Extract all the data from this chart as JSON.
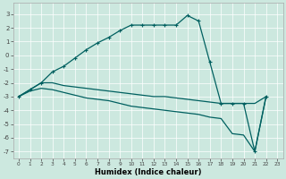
{
  "xlabel": "Humidex (Indice chaleur)",
  "bg_color": "#cce8df",
  "grid_color": "#ffffff",
  "line_color": "#006060",
  "xlim": [
    -0.5,
    23.5
  ],
  "ylim": [
    -7.5,
    3.8
  ],
  "yticks": [
    -7,
    -6,
    -5,
    -4,
    -3,
    -2,
    -1,
    0,
    1,
    2,
    3
  ],
  "xticks": [
    0,
    1,
    2,
    3,
    4,
    5,
    6,
    7,
    8,
    9,
    10,
    11,
    12,
    13,
    14,
    15,
    16,
    17,
    18,
    19,
    20,
    21,
    22,
    23
  ],
  "curve1_x": [
    0,
    1,
    2,
    3,
    4,
    5,
    6,
    7,
    8,
    9,
    10,
    11,
    12,
    13,
    14,
    15,
    16,
    17,
    18,
    19,
    20,
    21,
    22
  ],
  "curve1_y": [
    -3.0,
    -2.5,
    -2.0,
    -1.2,
    -0.8,
    -0.2,
    0.4,
    0.9,
    1.3,
    1.8,
    2.2,
    2.2,
    2.2,
    2.2,
    2.2,
    2.9,
    2.5,
    -0.5,
    -3.5,
    -3.5,
    -3.5,
    -7.0,
    -3.0
  ],
  "curve2_x": [
    0,
    1,
    2,
    3,
    4,
    5,
    6,
    7,
    8,
    9,
    10,
    11,
    12,
    13,
    14,
    15,
    16,
    17,
    18,
    19,
    20,
    21,
    22
  ],
  "curve2_y": [
    -3.0,
    -2.5,
    -2.0,
    -2.0,
    -2.2,
    -2.3,
    -2.4,
    -2.5,
    -2.6,
    -2.7,
    -2.8,
    -2.9,
    -3.0,
    -3.0,
    -3.1,
    -3.2,
    -3.3,
    -3.4,
    -3.5,
    -3.5,
    -3.5,
    -3.5,
    -3.0
  ],
  "curve3_x": [
    0,
    1,
    2,
    3,
    4,
    5,
    6,
    7,
    8,
    9,
    10,
    11,
    12,
    13,
    14,
    15,
    16,
    17,
    18,
    19,
    20,
    21,
    22
  ],
  "curve3_y": [
    -3.0,
    -2.6,
    -2.4,
    -2.5,
    -2.7,
    -2.9,
    -3.1,
    -3.2,
    -3.3,
    -3.5,
    -3.7,
    -3.8,
    -3.9,
    -4.0,
    -4.1,
    -4.2,
    -4.3,
    -4.5,
    -4.6,
    -5.7,
    -5.8,
    -7.0,
    -3.0
  ]
}
